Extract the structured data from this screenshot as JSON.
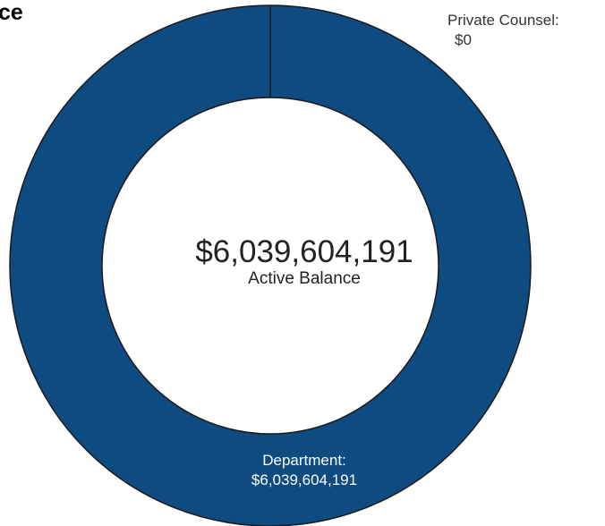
{
  "title_fragment": "ce",
  "chart_data": {
    "type": "pie",
    "subtype": "donut",
    "categories": [
      "Department",
      "Private Counsel"
    ],
    "values": [
      6039604191,
      0
    ],
    "labels": [
      {
        "name": "Department:",
        "value": "$6,039,604,191"
      },
      {
        "name": "Private Counsel:",
        "value": "$0"
      }
    ],
    "center": {
      "value": "$6,039,604,191",
      "caption": "Active Balance"
    },
    "colors": {
      "Department": "#0e4b80",
      "Private Counsel": "#8aa8c8",
      "outline": "#1a1a1a",
      "center_fill": "#ffffff"
    }
  }
}
